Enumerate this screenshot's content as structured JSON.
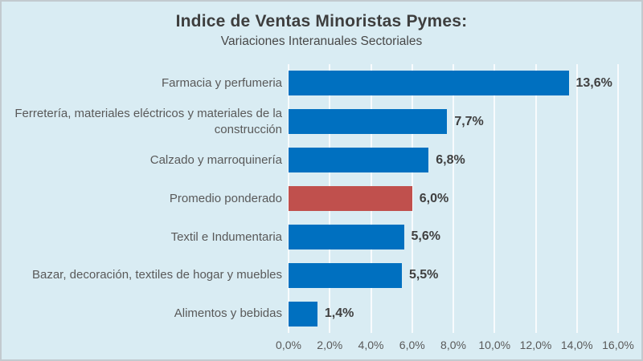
{
  "chart_data": {
    "type": "bar",
    "orientation": "horizontal",
    "title": "Indice de Ventas Minoristas Pymes:",
    "subtitle": "Variaciones Interanuales Sectoriales",
    "categories": [
      "Farmacia y perfumeria",
      "Ferretería, materiales eléctricos y materiales de la construcción",
      "Calzado y marroquinería",
      "Promedio ponderado",
      "Textil e Indumentaria",
      "Bazar, decoración, textiles de hogar y muebles",
      "Alimentos y bebidas"
    ],
    "values": [
      13.6,
      7.7,
      6.8,
      6.0,
      5.6,
      5.5,
      1.4
    ],
    "value_labels": [
      "13,6%",
      "7,7%",
      "6,8%",
      "6,0%",
      "5,6%",
      "5,5%",
      "1,4%"
    ],
    "highlight_index": 3,
    "xlim": [
      0,
      16
    ],
    "x_tick_values": [
      0,
      2,
      4,
      6,
      8,
      10,
      12,
      14,
      16
    ],
    "x_tick_labels": [
      "0,0%",
      "2,0%",
      "4,0%",
      "6,0%",
      "8,0%",
      "10,0%",
      "12,0%",
      "14,0%",
      "16,0%"
    ],
    "grid": "vertical-only",
    "legend": "none",
    "colors": {
      "bar": "#0070C0",
      "highlight": "#C0504D",
      "background": "#D9ECF3",
      "gridline": "rgba(255,255,255,0.8)",
      "title_text": "#3E3E3E",
      "category_text": "#595959",
      "value_text": "#404040",
      "tick_text": "#595959"
    }
  }
}
